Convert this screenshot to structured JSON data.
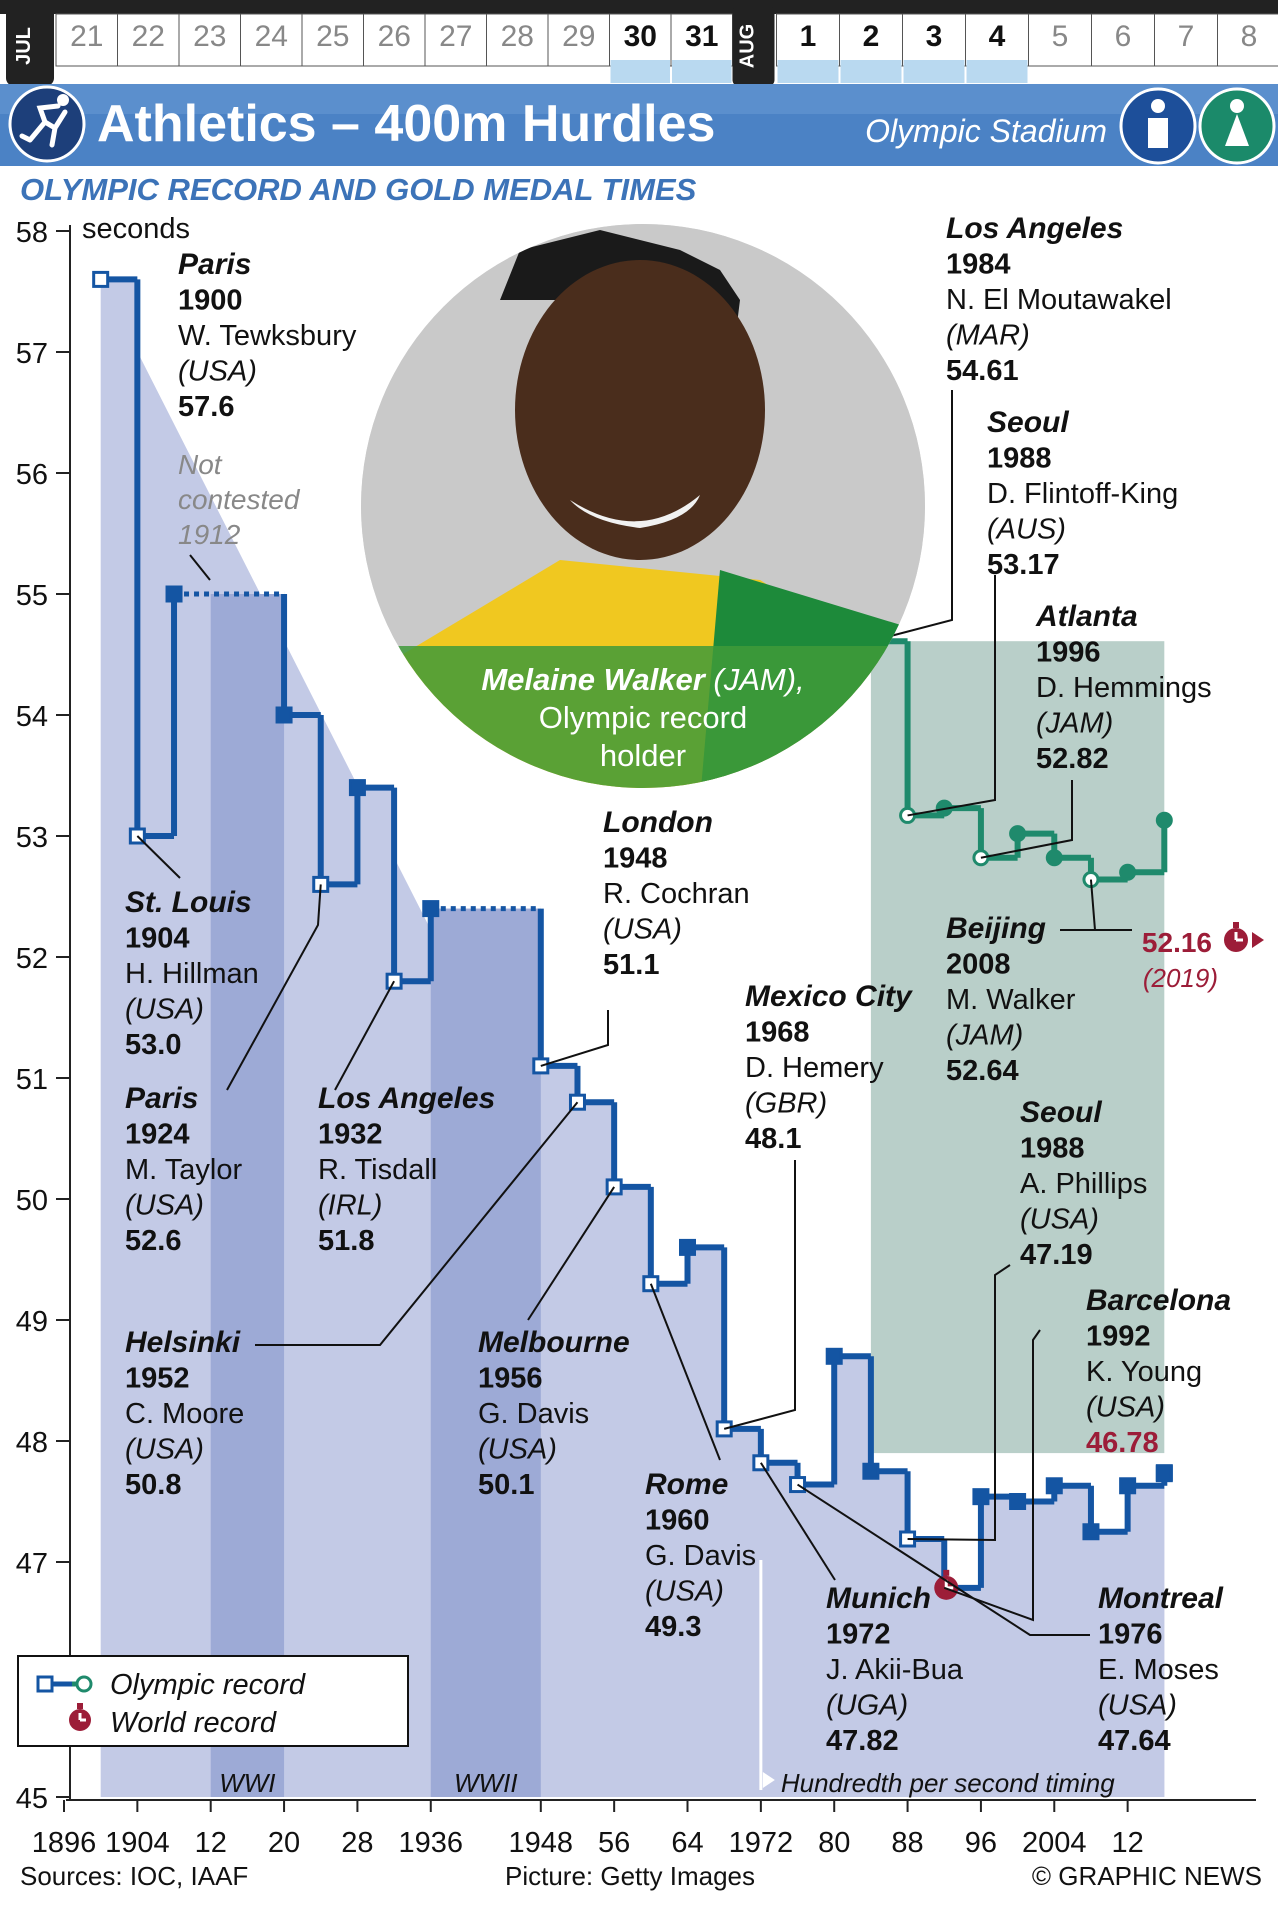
{
  "calendar": {
    "month_labels": [
      "JUL",
      "AUG"
    ],
    "days": [
      "21",
      "22",
      "23",
      "24",
      "25",
      "26",
      "27",
      "28",
      "29",
      "30",
      "31",
      "1",
      "2",
      "3",
      "4",
      "5",
      "6",
      "7",
      "8"
    ],
    "competition_days": [
      "30",
      "31",
      "1",
      "2",
      "3",
      "4"
    ]
  },
  "header": {
    "title": "Athletics – 400m Hurdles",
    "venue": "Olympic Stadium",
    "sport_icon": "runner-icon",
    "gender_icons": [
      "men-icon",
      "women-icon"
    ]
  },
  "subtitle": "OLYMPIC RECORD AND GOLD MEDAL TIMES",
  "photo": {
    "caption_name": "Melaine Walker",
    "caption_country": "(JAM),",
    "caption_line2": "Olympic record",
    "caption_line3": "holder",
    "credit": "Picture: Getty Images"
  },
  "colors": {
    "men": "#1455a3",
    "women": "#1f8a6c",
    "world_record": "#9c1d38",
    "panel_men": "#c3cae6",
    "panel_war": "#9daad6",
    "panel_women": "#b9cfc9",
    "header_bar": "#4b82c5"
  },
  "chart_data": {
    "type": "line",
    "step": true,
    "title": "Olympic record and gold medal times",
    "ylabel": "seconds",
    "ylim": [
      45,
      58
    ],
    "xlim": [
      1896,
      2026
    ],
    "x_tick_labels": [
      "1896",
      "1904",
      "12",
      "20",
      "28",
      "1936",
      "1948",
      "56",
      "64",
      "1972",
      "80",
      "88",
      "96",
      "2004",
      "12"
    ],
    "y_tick_labels": [
      "45",
      "47",
      "48",
      "49",
      "50",
      "51",
      "52",
      "53",
      "54",
      "55",
      "56",
      "57",
      "58"
    ],
    "series": [
      {
        "name": "Olympic record",
        "group": "men",
        "x": [
          1900,
          1904,
          1908,
          1920,
          1924,
          1928,
          1932,
          1936,
          1948,
          1952,
          1956,
          1960,
          1964,
          1968,
          1972,
          1976,
          1980,
          1984,
          1988,
          1992,
          1996,
          2000,
          2004,
          2008,
          2012,
          2016
        ],
        "values": [
          57.6,
          53.0,
          55.0,
          54.0,
          52.6,
          53.4,
          51.8,
          52.4,
          51.1,
          50.8,
          50.1,
          49.3,
          49.6,
          48.1,
          47.82,
          47.64,
          48.7,
          47.75,
          47.19,
          46.78,
          47.54,
          47.5,
          47.63,
          47.25,
          47.63,
          47.73
        ],
        "is_record": [
          true,
          true,
          false,
          false,
          true,
          false,
          true,
          false,
          true,
          true,
          true,
          true,
          false,
          true,
          true,
          true,
          false,
          false,
          true,
          true,
          false,
          false,
          false,
          false,
          false,
          false
        ]
      },
      {
        "name": "Olympic record",
        "group": "women",
        "x": [
          1984,
          1988,
          1992,
          1996,
          2000,
          2004,
          2008,
          2012,
          2016
        ],
        "values": [
          54.61,
          53.17,
          53.23,
          52.82,
          53.02,
          52.82,
          52.64,
          52.7,
          53.13
        ],
        "is_record": [
          true,
          true,
          false,
          true,
          false,
          false,
          true,
          false,
          false
        ]
      }
    ],
    "dotted_gaps": [
      {
        "from": 1908,
        "to": 1920,
        "value": 55.0
      },
      {
        "from": 1936,
        "to": 1948,
        "value": 52.4
      }
    ],
    "world_record": {
      "value": 52.16,
      "label": "52.16",
      "year_label": "(2019)"
    },
    "war_bands": [
      {
        "from": 1912,
        "to": 1920,
        "label": "WWI"
      },
      {
        "from": 1936,
        "to": 1948,
        "label": "WWII"
      }
    ],
    "hundredth_timing_note": "Hundredth per second timing",
    "not_contested_note": [
      "Not",
      "contested",
      "1912"
    ],
    "annotations": [
      {
        "city": "Paris",
        "year": "1900",
        "athlete": "W. Tewksbury",
        "country": "(USA)",
        "time": "57.6"
      },
      {
        "city": "St. Louis",
        "year": "1904",
        "athlete": "H. Hillman",
        "country": "(USA)",
        "time": "53.0"
      },
      {
        "city": "Paris",
        "year": "1924",
        "athlete": "M. Taylor",
        "country": "(USA)",
        "time": "52.6"
      },
      {
        "city": "Los Angeles",
        "year": "1932",
        "athlete": "R. Tisdall",
        "country": "(IRL)",
        "time": "51.8"
      },
      {
        "city": "Helsinki",
        "year": "1952",
        "athlete": "C. Moore",
        "country": "(USA)",
        "time": "50.8"
      },
      {
        "city": "Melbourne",
        "year": "1956",
        "athlete": "G. Davis",
        "country": "(USA)",
        "time": "50.1"
      },
      {
        "city": "London",
        "year": "1948",
        "athlete": "R. Cochran",
        "country": "(USA)",
        "time": "51.1"
      },
      {
        "city": "Rome",
        "year": "1960",
        "athlete": "G. Davis",
        "country": "(USA)",
        "time": "49.3"
      },
      {
        "city": "Mexico City",
        "year": "1968",
        "athlete": "D. Hemery",
        "country": "(GBR)",
        "time": "48.1"
      },
      {
        "city": "Munich",
        "year": "1972",
        "athlete": "J. Akii-Bua",
        "country": "(UGA)",
        "time": "47.82"
      },
      {
        "city": "Montreal",
        "year": "1976",
        "athlete": "E. Moses",
        "country": "(USA)",
        "time": "47.64"
      },
      {
        "city": "Seoul",
        "year": "1988",
        "athlete": "A. Phillips",
        "country": "(USA)",
        "time": "47.19"
      },
      {
        "city": "Barcelona",
        "year": "1992",
        "athlete": "K. Young",
        "country": "(USA)",
        "time": "46.78"
      },
      {
        "city": "Los Angeles",
        "year": "1984",
        "athlete": "N. El Moutawakel",
        "country": "(MAR)",
        "time": "54.61"
      },
      {
        "city": "Seoul",
        "year": "1988",
        "athlete": "D. Flintoff-King",
        "country": "(AUS)",
        "time": "53.17"
      },
      {
        "city": "Atlanta",
        "year": "1996",
        "athlete": "D. Hemmings",
        "country": "(JAM)",
        "time": "52.82"
      },
      {
        "city": "Beijing",
        "year": "2008",
        "athlete": "M. Walker",
        "country": "(JAM)",
        "time": "52.64"
      }
    ],
    "legend": [
      {
        "label": "Olympic record"
      },
      {
        "label": "World record"
      }
    ]
  },
  "footer": {
    "sources": "Sources: IOC, IAAF",
    "credit": "© GRAPHIC NEWS"
  }
}
